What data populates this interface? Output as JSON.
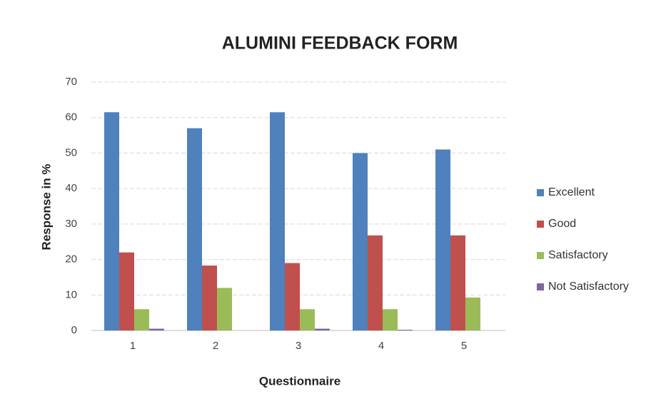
{
  "chart_data": {
    "type": "bar",
    "title": "ALUMINI FEEDBACK FORM",
    "x_label": "Questionnaire",
    "y_label": "Response in %",
    "categories": [
      "1",
      "2",
      "3",
      "4",
      "5"
    ],
    "series": [
      {
        "name": "Excellent",
        "color": "#4f81bd",
        "values": [
          61.5,
          57,
          61.5,
          50,
          51
        ]
      },
      {
        "name": "Good",
        "color": "#c0504d",
        "values": [
          22,
          18.3,
          19,
          26.8,
          26.8
        ]
      },
      {
        "name": "Satisfactory",
        "color": "#9bbb59",
        "values": [
          6,
          12,
          6,
          6,
          9.3
        ]
      },
      {
        "name": "Not Satisfactory",
        "color": "#8064a2",
        "values": [
          0.5,
          0,
          0.5,
          0.2,
          0
        ]
      }
    ],
    "ylim": [
      0,
      70
    ],
    "yticks": [
      0,
      10,
      20,
      30,
      40,
      50,
      60,
      70
    ],
    "grid": true,
    "legend": "right"
  }
}
